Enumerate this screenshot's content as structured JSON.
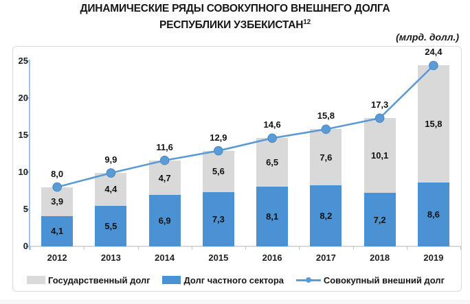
{
  "title": {
    "line1": "ДИНАМИЧЕСКИЕ РЯДЫ СОВОКУПНОГО ВНЕШНЕГО ДОЛГА",
    "line2": "РЕСПУБЛИКИ УЗБЕКИСТАН",
    "superscript": "12"
  },
  "subtitle": "(млрд. долл.)",
  "chart_data": {
    "type": "bar",
    "stacked": true,
    "decimal_separator": ",",
    "categories": [
      "2012",
      "2013",
      "2014",
      "2015",
      "2016",
      "2017",
      "2018",
      "2019"
    ],
    "series": [
      {
        "name": "Государственный долг",
        "kind": "bar",
        "stack_order": "top",
        "color": "#d9d9d9",
        "values": [
          3.9,
          4.4,
          4.7,
          5.6,
          6.5,
          7.6,
          10.1,
          15.8
        ]
      },
      {
        "name": "Долг частного сектора",
        "kind": "bar",
        "stack_order": "bottom",
        "color": "#4b92d4",
        "values": [
          4.1,
          5.5,
          6.9,
          7.3,
          8.1,
          8.2,
          7.2,
          8.6
        ]
      },
      {
        "name": "Совокупный внешний долг",
        "kind": "line",
        "color": "#5b9bd5",
        "marker_stroke": "#4a88c7",
        "values": [
          8.0,
          9.9,
          11.6,
          12.9,
          14.6,
          15.8,
          17.3,
          24.4
        ]
      }
    ],
    "ylim": [
      0,
      25
    ],
    "yticks": [
      0,
      5,
      10,
      15,
      20,
      25
    ],
    "grid": false,
    "legend_position": "bottom",
    "axis_colors": {
      "y_axis": "#9dc3e6",
      "x_axis": "#d9d9d9",
      "x_tick": "#c4c4c4"
    }
  }
}
